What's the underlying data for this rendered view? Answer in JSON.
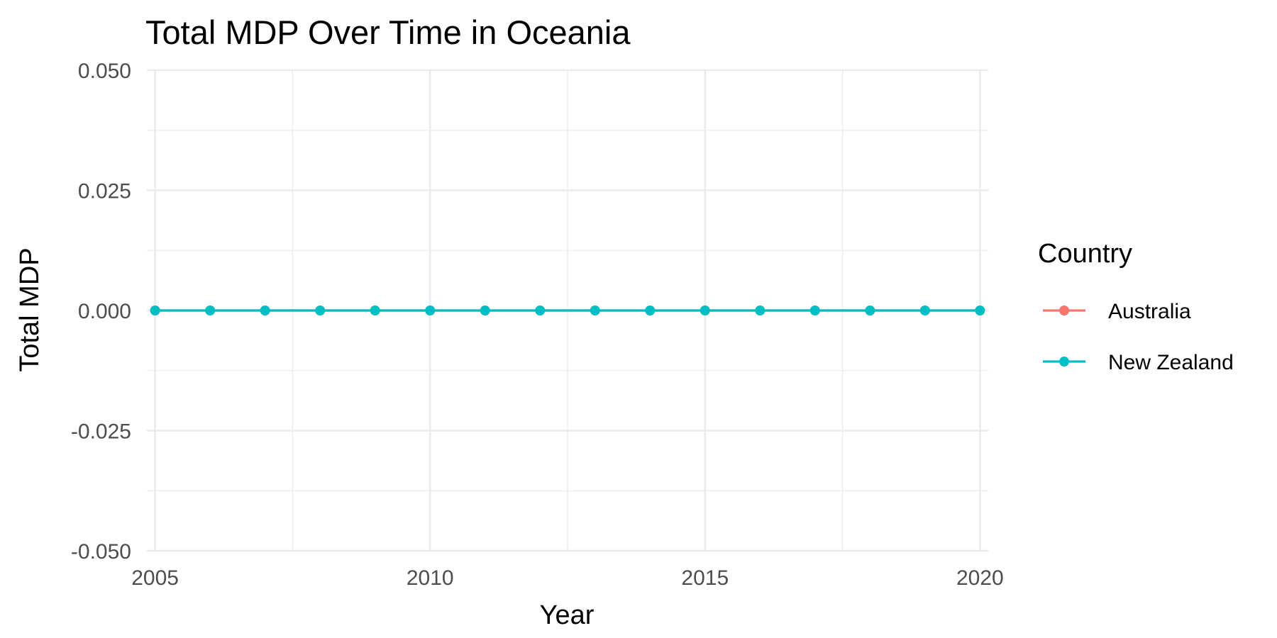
{
  "chart_data": {
    "type": "line",
    "title": "Total MDP Over Time in Oceania",
    "xlabel": "Year",
    "ylabel": "Total MDP",
    "xlim": [
      2004.85,
      2020.15
    ],
    "ylim": [
      -0.05,
      0.05
    ],
    "x_ticks": [
      2005,
      2010,
      2015,
      2020
    ],
    "x_tick_labels": [
      "2005",
      "2010",
      "2015",
      "2020"
    ],
    "x_minor_ticks": [
      2007.5,
      2012.5,
      2017.5
    ],
    "y_ticks": [
      -0.05,
      -0.025,
      0,
      0.025,
      0.05
    ],
    "y_tick_labels": [
      "-0.050",
      "-0.025",
      "0.000",
      "0.025",
      "0.050"
    ],
    "y_minor_ticks": [
      -0.0375,
      -0.0125,
      0.0125,
      0.0375
    ],
    "grid": true,
    "legend": {
      "title": "Country",
      "position": "right"
    },
    "x": [
      2005,
      2006,
      2007,
      2008,
      2009,
      2010,
      2011,
      2012,
      2013,
      2014,
      2015,
      2016,
      2017,
      2018,
      2019,
      2020
    ],
    "series": [
      {
        "name": "Australia",
        "color": "#F8766D",
        "values": [
          0,
          0,
          0,
          0,
          0,
          0,
          0,
          0,
          0,
          0,
          0,
          0,
          0,
          0,
          0,
          0
        ]
      },
      {
        "name": "New Zealand",
        "color": "#00BFC4",
        "values": [
          0,
          0,
          0,
          0,
          0,
          0,
          0,
          0,
          0,
          0,
          0,
          0,
          0,
          0,
          0,
          0
        ]
      }
    ]
  }
}
